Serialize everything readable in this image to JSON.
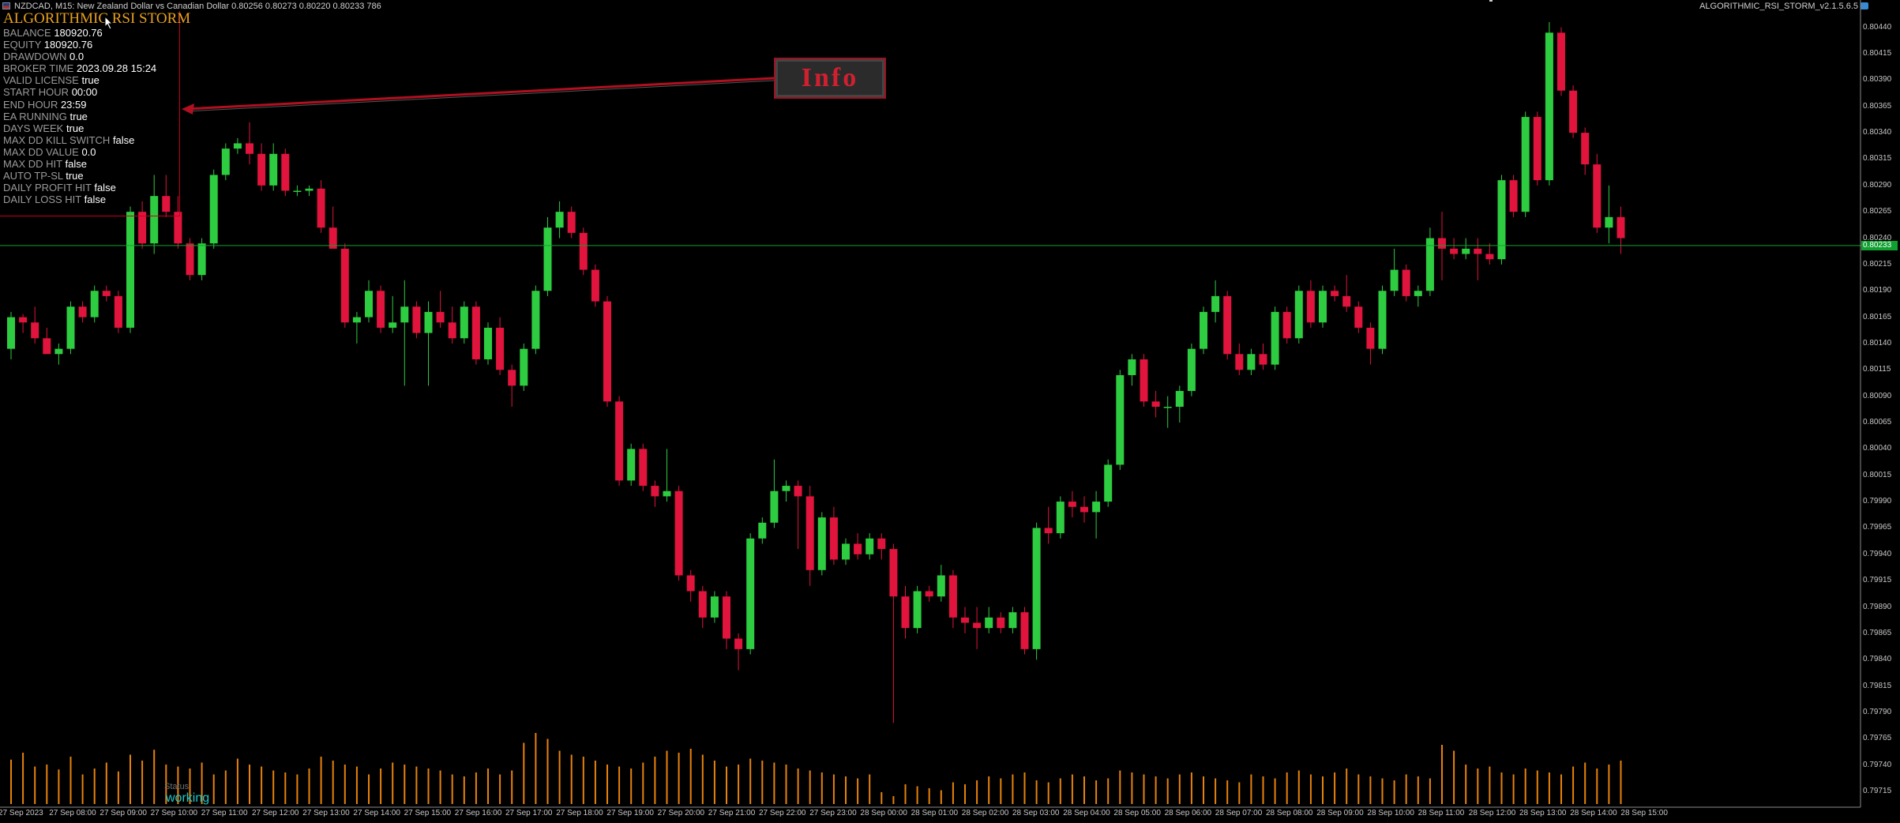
{
  "header": {
    "symbol_line": "NZDCAD, M15:  New Zealand Dollar vs Canadian Dollar  0.80256 0.80273 0.80220 0.80233  786",
    "ea_name": "ALGORITHMIC_RSI_STORM_v2.1.5.6.5"
  },
  "panel": {
    "title": "ALGORITHMIC RSI STORM",
    "rows": [
      {
        "label": "BALANCE",
        "value": "180920.76"
      },
      {
        "label": "EQUITY",
        "value": "180920.76"
      },
      {
        "label": "DRAWDOWN",
        "value": "0.0"
      },
      {
        "label": "BROKER TIME",
        "value": "2023.09.28 15:24"
      },
      {
        "label": "VALID LICENSE",
        "value": "true"
      },
      {
        "label": "START HOUR",
        "value": "00:00"
      },
      {
        "label": "END HOUR",
        "value": "23:59"
      },
      {
        "label": "EA RUNNING",
        "value": "true"
      },
      {
        "label": "DAYS WEEK",
        "value": "true"
      },
      {
        "label": "MAX DD KILL SWITCH",
        "value": "false"
      },
      {
        "label": "MAX DD VALUE",
        "value": "0.0"
      },
      {
        "label": "MAX DD HIT",
        "value": "false"
      },
      {
        "label": "AUTO TP-SL",
        "value": "true"
      },
      {
        "label": "DAILY PROFIT HIT",
        "value": "false"
      },
      {
        "label": "DAILY LOSS HIT",
        "value": "false"
      }
    ]
  },
  "annotation": {
    "text": "Info"
  },
  "status": {
    "label": "Status",
    "value": "working"
  },
  "price_axis": {
    "labels": [
      "0.80440",
      "0.80415",
      "0.80390",
      "0.80365",
      "0.80340",
      "0.80315",
      "0.80290",
      "0.80265",
      "0.80240",
      "0.80215",
      "0.80190",
      "0.80165",
      "0.80140",
      "0.80115",
      "0.80090",
      "0.80065",
      "0.80040",
      "0.80015",
      "0.79990",
      "0.79965",
      "0.79940",
      "0.79915",
      "0.79890",
      "0.79865",
      "0.79840",
      "0.79815",
      "0.79790",
      "0.79765",
      "0.79740",
      "0.79715"
    ],
    "current_price": "0.80233"
  },
  "time_axis": {
    "labels": [
      "27 Sep 2023",
      "27 Sep 08:00",
      "27 Sep 09:00",
      "27 Sep 10:00",
      "27 Sep 11:00",
      "27 Sep 12:00",
      "27 Sep 13:00",
      "27 Sep 14:00",
      "27 Sep 15:00",
      "27 Sep 16:00",
      "27 Sep 17:00",
      "27 Sep 18:00",
      "27 Sep 19:00",
      "27 Sep 20:00",
      "27 Sep 21:00",
      "27 Sep 22:00",
      "27 Sep 23:00",
      "28 Sep 00:00",
      "28 Sep 01:00",
      "28 Sep 02:00",
      "28 Sep 03:00",
      "28 Sep 04:00",
      "28 Sep 05:00",
      "28 Sep 06:00",
      "28 Sep 07:00",
      "28 Sep 08:00",
      "28 Sep 09:00",
      "28 Sep 10:00",
      "28 Sep 11:00",
      "28 Sep 12:00",
      "28 Sep 13:00",
      "28 Sep 14:00",
      "28 Sep 15:00"
    ]
  },
  "colors": {
    "bull": "#2ecc40",
    "bear": "#e0143c",
    "volume": "#e8820a",
    "price_line": "#10a030",
    "panel_border": "#c8001e"
  },
  "chart_data": {
    "type": "candlestick",
    "symbol": "NZDCAD",
    "timeframe": "M15",
    "ylim": [
      0.797,
      0.8046
    ],
    "current_price": 0.80233,
    "candles": [
      [
        0.80135,
        0.8017,
        0.80125,
        0.80165
      ],
      [
        0.80165,
        0.80168,
        0.8015,
        0.8016
      ],
      [
        0.8016,
        0.80175,
        0.8014,
        0.80145
      ],
      [
        0.80145,
        0.80155,
        0.8013,
        0.8013
      ],
      [
        0.8013,
        0.8014,
        0.8012,
        0.80135
      ],
      [
        0.80135,
        0.8018,
        0.8013,
        0.80175
      ],
      [
        0.80175,
        0.8018,
        0.8016,
        0.80165
      ],
      [
        0.80165,
        0.80195,
        0.8016,
        0.8019
      ],
      [
        0.8019,
        0.80195,
        0.8018,
        0.80185
      ],
      [
        0.80185,
        0.8019,
        0.8015,
        0.80155
      ],
      [
        0.80155,
        0.8027,
        0.8015,
        0.80265
      ],
      [
        0.80265,
        0.80275,
        0.8023,
        0.80235
      ],
      [
        0.80235,
        0.803,
        0.80225,
        0.8028
      ],
      [
        0.8028,
        0.803,
        0.8026,
        0.80265
      ],
      [
        0.80265,
        0.8028,
        0.8023,
        0.80235
      ],
      [
        0.80235,
        0.8024,
        0.802,
        0.80205
      ],
      [
        0.80205,
        0.8024,
        0.802,
        0.80235
      ],
      [
        0.80235,
        0.80305,
        0.8023,
        0.803
      ],
      [
        0.803,
        0.8033,
        0.80295,
        0.80325
      ],
      [
        0.80325,
        0.80335,
        0.8032,
        0.8033
      ],
      [
        0.8033,
        0.8035,
        0.8031,
        0.8032
      ],
      [
        0.8032,
        0.8033,
        0.80285,
        0.8029
      ],
      [
        0.8029,
        0.8033,
        0.80285,
        0.8032
      ],
      [
        0.8032,
        0.80325,
        0.8028,
        0.80285
      ],
      [
        0.80285,
        0.8029,
        0.8028,
        0.80285
      ],
      [
        0.80285,
        0.8029,
        0.8028,
        0.80287
      ],
      [
        0.80287,
        0.80295,
        0.80245,
        0.8025
      ],
      [
        0.8025,
        0.8027,
        0.8023,
        0.8023
      ],
      [
        0.8023,
        0.80235,
        0.80155,
        0.8016
      ],
      [
        0.8016,
        0.8017,
        0.8014,
        0.80165
      ],
      [
        0.80165,
        0.802,
        0.8016,
        0.8019
      ],
      [
        0.8019,
        0.80195,
        0.8015,
        0.80155
      ],
      [
        0.80155,
        0.80185,
        0.8015,
        0.8016
      ],
      [
        0.8016,
        0.802,
        0.801,
        0.80175
      ],
      [
        0.80175,
        0.8018,
        0.80145,
        0.8015
      ],
      [
        0.8015,
        0.8018,
        0.801,
        0.8017
      ],
      [
        0.8017,
        0.8019,
        0.80155,
        0.8016
      ],
      [
        0.8016,
        0.80175,
        0.8014,
        0.80145
      ],
      [
        0.80145,
        0.8018,
        0.8014,
        0.80175
      ],
      [
        0.80175,
        0.8018,
        0.8012,
        0.80125
      ],
      [
        0.80125,
        0.8016,
        0.8012,
        0.80155
      ],
      [
        0.80155,
        0.80165,
        0.8011,
        0.80115
      ],
      [
        0.80115,
        0.8012,
        0.8008,
        0.801
      ],
      [
        0.801,
        0.8014,
        0.80095,
        0.80135
      ],
      [
        0.80135,
        0.80195,
        0.8013,
        0.8019
      ],
      [
        0.8019,
        0.8026,
        0.80185,
        0.8025
      ],
      [
        0.8025,
        0.80275,
        0.8024,
        0.80265
      ],
      [
        0.80265,
        0.8027,
        0.8024,
        0.80245
      ],
      [
        0.80245,
        0.8025,
        0.80205,
        0.8021
      ],
      [
        0.8021,
        0.80215,
        0.80175,
        0.8018
      ],
      [
        0.8018,
        0.80185,
        0.8008,
        0.80085
      ],
      [
        0.80085,
        0.8009,
        0.80005,
        0.8001
      ],
      [
        0.8001,
        0.80045,
        0.80005,
        0.8004
      ],
      [
        0.8004,
        0.80045,
        0.8,
        0.80005
      ],
      [
        0.80005,
        0.8001,
        0.79985,
        0.79995
      ],
      [
        0.79995,
        0.8004,
        0.7999,
        0.8
      ],
      [
        0.8,
        0.80005,
        0.79915,
        0.7992
      ],
      [
        0.7992,
        0.79925,
        0.79895,
        0.79905
      ],
      [
        0.79905,
        0.7991,
        0.7987,
        0.7988
      ],
      [
        0.7988,
        0.79905,
        0.79875,
        0.799
      ],
      [
        0.799,
        0.79905,
        0.7985,
        0.7986
      ],
      [
        0.7986,
        0.79865,
        0.7983,
        0.7985
      ],
      [
        0.7985,
        0.7996,
        0.79845,
        0.79955
      ],
      [
        0.79955,
        0.79975,
        0.7995,
        0.7997
      ],
      [
        0.7997,
        0.8003,
        0.79965,
        0.8
      ],
      [
        0.8,
        0.8001,
        0.7999,
        0.80005
      ],
      [
        0.80005,
        0.8001,
        0.79945,
        0.79995
      ],
      [
        0.79995,
        0.80005,
        0.7991,
        0.79925
      ],
      [
        0.79925,
        0.7998,
        0.7992,
        0.79975
      ],
      [
        0.79975,
        0.79985,
        0.7993,
        0.79935
      ],
      [
        0.79935,
        0.79955,
        0.7993,
        0.7995
      ],
      [
        0.7995,
        0.7996,
        0.79935,
        0.7994
      ],
      [
        0.7994,
        0.7996,
        0.79935,
        0.79955
      ],
      [
        0.79955,
        0.7996,
        0.79935,
        0.79945
      ],
      [
        0.79945,
        0.7995,
        0.7978,
        0.799
      ],
      [
        0.799,
        0.7991,
        0.7986,
        0.7987
      ],
      [
        0.7987,
        0.7991,
        0.79865,
        0.79905
      ],
      [
        0.79905,
        0.7991,
        0.79895,
        0.799
      ],
      [
        0.799,
        0.7993,
        0.79895,
        0.7992
      ],
      [
        0.7992,
        0.79925,
        0.7987,
        0.7988
      ],
      [
        0.7988,
        0.7989,
        0.79865,
        0.79875
      ],
      [
        0.79875,
        0.7989,
        0.7985,
        0.7987
      ],
      [
        0.7987,
        0.7989,
        0.79865,
        0.7988
      ],
      [
        0.7988,
        0.79885,
        0.79865,
        0.7987
      ],
      [
        0.7987,
        0.7989,
        0.79865,
        0.79885
      ],
      [
        0.79885,
        0.7989,
        0.79845,
        0.7985
      ],
      [
        0.7985,
        0.7997,
        0.7984,
        0.79965
      ],
      [
        0.79965,
        0.79985,
        0.7995,
        0.7996
      ],
      [
        0.7996,
        0.79995,
        0.79955,
        0.7999
      ],
      [
        0.7999,
        0.8,
        0.79975,
        0.79985
      ],
      [
        0.79985,
        0.79995,
        0.7997,
        0.7998
      ],
      [
        0.7998,
        0.8,
        0.79955,
        0.7999
      ],
      [
        0.7999,
        0.8003,
        0.79985,
        0.80025
      ],
      [
        0.80025,
        0.80115,
        0.8002,
        0.8011
      ],
      [
        0.8011,
        0.8013,
        0.801,
        0.80125
      ],
      [
        0.80125,
        0.8013,
        0.8008,
        0.80085
      ],
      [
        0.80085,
        0.80095,
        0.8007,
        0.8008
      ],
      [
        0.8008,
        0.8009,
        0.8006,
        0.8008
      ],
      [
        0.8008,
        0.801,
        0.80065,
        0.80095
      ],
      [
        0.80095,
        0.8014,
        0.8009,
        0.80135
      ],
      [
        0.80135,
        0.80175,
        0.8013,
        0.8017
      ],
      [
        0.8017,
        0.802,
        0.8016,
        0.80185
      ],
      [
        0.80185,
        0.8019,
        0.80125,
        0.8013
      ],
      [
        0.8013,
        0.8014,
        0.8011,
        0.80115
      ],
      [
        0.80115,
        0.80135,
        0.8011,
        0.8013
      ],
      [
        0.8013,
        0.8014,
        0.80115,
        0.8012
      ],
      [
        0.8012,
        0.80175,
        0.80115,
        0.8017
      ],
      [
        0.8017,
        0.80175,
        0.8014,
        0.80145
      ],
      [
        0.80145,
        0.80195,
        0.8014,
        0.8019
      ],
      [
        0.8019,
        0.802,
        0.80155,
        0.8016
      ],
      [
        0.8016,
        0.80195,
        0.80155,
        0.8019
      ],
      [
        0.8019,
        0.80195,
        0.8018,
        0.80185
      ],
      [
        0.80185,
        0.80205,
        0.8017,
        0.80175
      ],
      [
        0.80175,
        0.8018,
        0.8015,
        0.80155
      ],
      [
        0.80155,
        0.8016,
        0.8012,
        0.80135
      ],
      [
        0.80135,
        0.80195,
        0.8013,
        0.8019
      ],
      [
        0.8019,
        0.8023,
        0.80185,
        0.8021
      ],
      [
        0.8021,
        0.80215,
        0.8018,
        0.80185
      ],
      [
        0.80185,
        0.80195,
        0.80175,
        0.8019
      ],
      [
        0.8019,
        0.8025,
        0.80185,
        0.8024
      ],
      [
        0.8024,
        0.80265,
        0.802,
        0.8023
      ],
      [
        0.8023,
        0.8024,
        0.8022,
        0.80225
      ],
      [
        0.80225,
        0.8024,
        0.8022,
        0.8023
      ],
      [
        0.8023,
        0.8024,
        0.802,
        0.80225
      ],
      [
        0.80225,
        0.80235,
        0.80215,
        0.8022
      ],
      [
        0.8022,
        0.803,
        0.80215,
        0.80295
      ],
      [
        0.80295,
        0.803,
        0.8026,
        0.80265
      ],
      [
        0.80265,
        0.8036,
        0.8026,
        0.80355
      ],
      [
        0.80355,
        0.8036,
        0.8029,
        0.80295
      ],
      [
        0.80295,
        0.80445,
        0.8029,
        0.80435
      ],
      [
        0.80435,
        0.8044,
        0.80375,
        0.8038
      ],
      [
        0.8038,
        0.80385,
        0.80335,
        0.8034
      ],
      [
        0.8034,
        0.80345,
        0.803,
        0.8031
      ],
      [
        0.8031,
        0.8032,
        0.80245,
        0.8025
      ],
      [
        0.8025,
        0.8029,
        0.80235,
        0.8026
      ],
      [
        0.8026,
        0.8027,
        0.80225,
        0.8024
      ]
    ],
    "volumes": [
      45,
      52,
      38,
      40,
      35,
      48,
      30,
      36,
      42,
      33,
      50,
      44,
      55,
      40,
      38,
      36,
      42,
      30,
      34,
      46,
      40,
      38,
      34,
      32,
      30,
      36,
      48,
      44,
      40,
      38,
      30,
      36,
      42,
      40,
      38,
      36,
      34,
      30,
      28,
      32,
      36,
      30,
      34,
      62,
      72,
      66,
      54,
      50,
      48,
      44,
      40,
      38,
      36,
      42,
      48,
      54,
      52,
      56,
      50,
      44,
      38,
      40,
      46,
      44,
      42,
      40,
      36,
      34,
      32,
      30,
      28,
      26,
      30,
      12,
      8,
      20,
      18,
      16,
      14,
      22,
      20,
      24,
      28,
      26,
      30,
      32,
      24,
      22,
      26,
      30,
      28,
      24,
      26,
      34,
      32,
      30,
      28,
      26,
      30,
      32,
      28,
      26,
      24,
      22,
      30,
      28,
      26,
      32,
      34,
      30,
      28,
      32,
      36,
      30,
      28,
      26,
      24,
      30,
      28,
      26,
      60,
      54,
      40,
      36,
      38,
      32,
      30,
      36,
      34,
      32,
      30,
      38,
      42,
      36,
      40,
      44
    ],
    "volume_max": 80
  }
}
